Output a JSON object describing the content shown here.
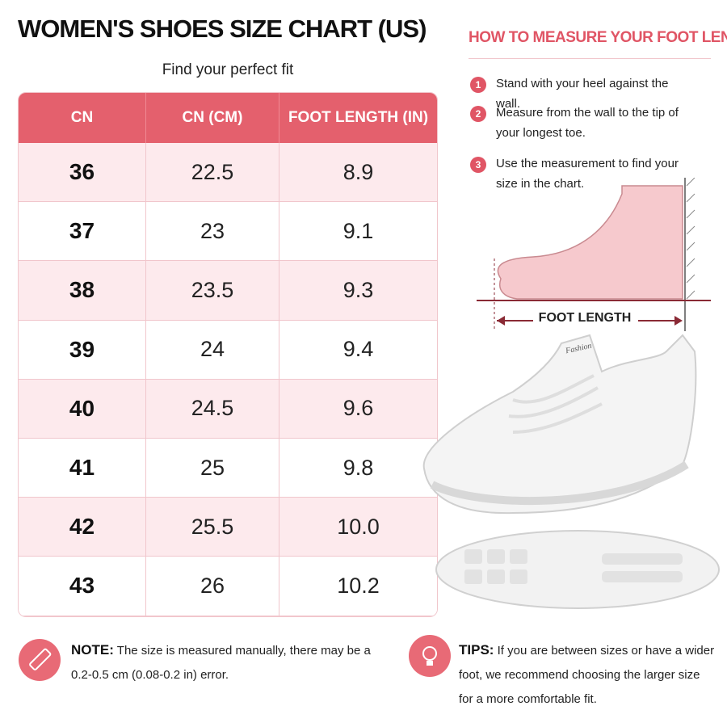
{
  "title": "WOMEN'S SHOES SIZE CHART (US)",
  "subtitle": "Find your perfect fit",
  "table": {
    "headers": [
      "CN",
      "CN (CM)",
      "FOOT LENGTH (IN)"
    ],
    "rows": [
      [
        "36",
        "22.5",
        "8.9"
      ],
      [
        "37",
        "23",
        "9.1"
      ],
      [
        "38",
        "23.5",
        "9.3"
      ],
      [
        "39",
        "24",
        "9.4"
      ],
      [
        "40",
        "24.5",
        "9.6"
      ],
      [
        "41",
        "25",
        "9.8"
      ],
      [
        "42",
        "25.5",
        "10.0"
      ],
      [
        "43",
        "26",
        "10.2"
      ]
    ]
  },
  "measure": {
    "title": "HOW TO MEASURE YOUR FOOT LENGTH",
    "steps": [
      {
        "number": "1",
        "text": "Stand with your heel against the wall."
      },
      {
        "number": "2",
        "text": "Measure from the wall to the tip of your longest toe."
      },
      {
        "number": "3",
        "text": "Use the measurement to find your size in the chart."
      }
    ],
    "diagram_label": "FOOT LENGTH"
  },
  "shoe_brand": "Fashion",
  "note": {
    "label": "NOTE:",
    "text": "The size is measured manually, there may be a 0.2-0.5 cm (0.08-0.2 in) error."
  },
  "tips": {
    "label": "TIPS:",
    "text": "If you are between sizes or have a wider foot, we recommend choosing the larger size for a more comfortable fit."
  }
}
